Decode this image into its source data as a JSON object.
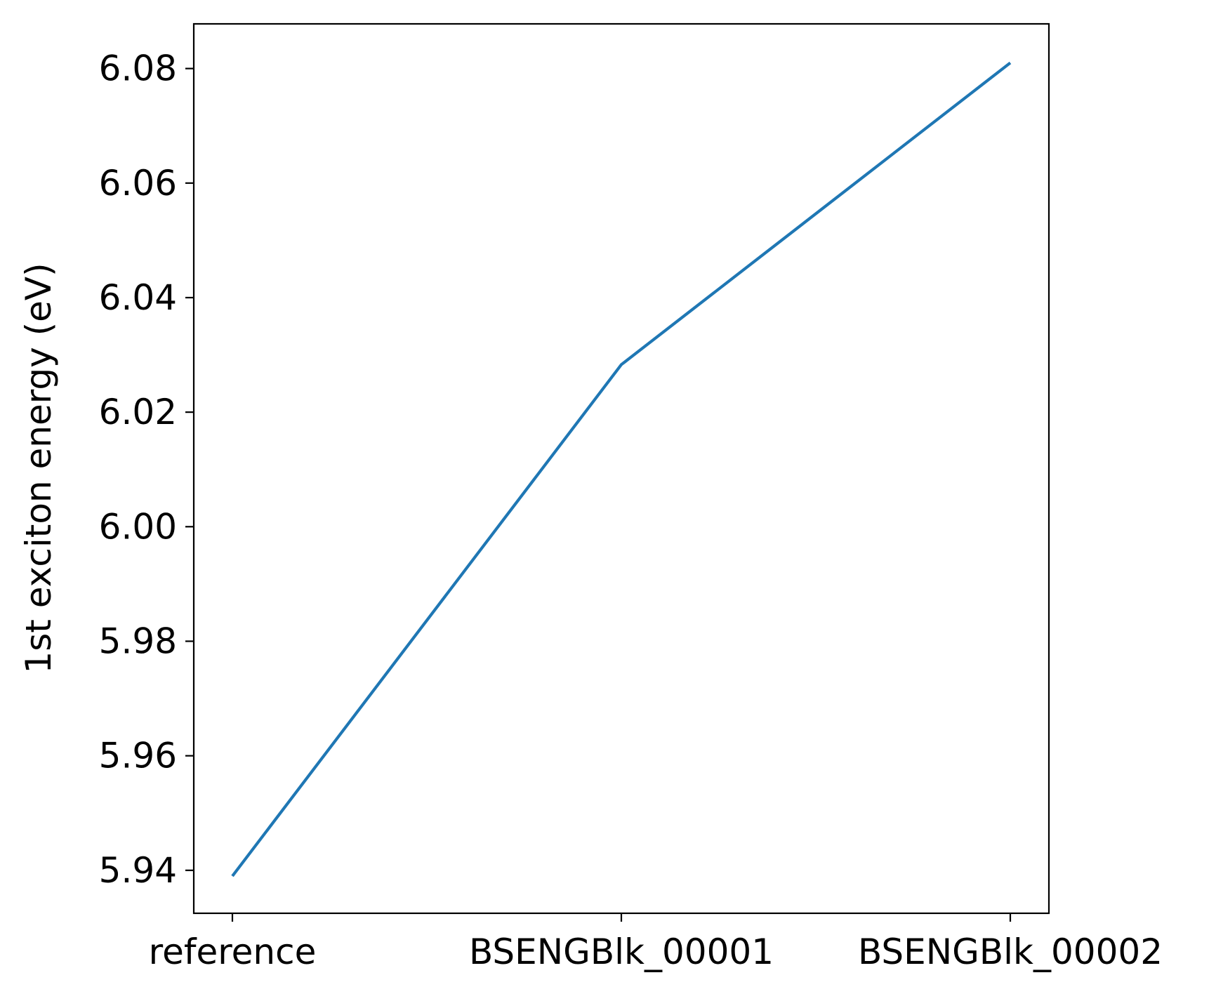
{
  "chart_data": {
    "type": "line",
    "categories": [
      "reference",
      "BSENGBlk_00001",
      "BSENGBlk_00002"
    ],
    "series": [
      {
        "values": [
          5.939,
          6.0283,
          6.081
        ],
        "color": "#1f77b4"
      }
    ],
    "title": "",
    "xlabel": "",
    "ylabel": "1st exciton energy (eV)",
    "ylim": [
      5.9325,
      6.0878
    ],
    "yticks": [
      "5.94",
      "5.96",
      "5.98",
      "6.00",
      "6.02",
      "6.04",
      "6.06",
      "6.08"
    ],
    "grid": false,
    "legend": "none"
  }
}
